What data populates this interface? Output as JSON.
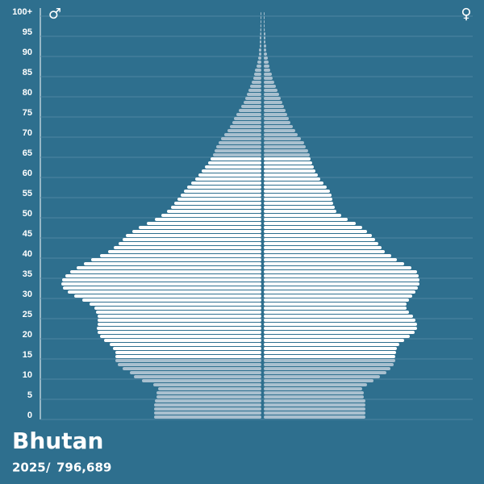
{
  "chart_data": {
    "type": "pyramid",
    "title": "Bhutan",
    "year": "2025",
    "separator": "/",
    "total": "796,689",
    "categories": [
      "0",
      null,
      null,
      null,
      null,
      "5",
      null,
      null,
      null,
      null,
      "10",
      null,
      null,
      null,
      null,
      "15",
      null,
      null,
      null,
      null,
      "20",
      null,
      null,
      null,
      null,
      "25",
      null,
      null,
      null,
      null,
      "30",
      null,
      null,
      null,
      null,
      "35",
      null,
      null,
      null,
      null,
      "40",
      null,
      null,
      null,
      null,
      "45",
      null,
      null,
      null,
      null,
      "50",
      null,
      null,
      null,
      null,
      "55",
      null,
      null,
      null,
      null,
      "60",
      null,
      null,
      null,
      null,
      "65",
      null,
      null,
      null,
      null,
      "70",
      null,
      null,
      null,
      null,
      "75",
      null,
      null,
      null,
      null,
      "80",
      null,
      null,
      null,
      null,
      "85",
      null,
      null,
      null,
      null,
      "90",
      null,
      null,
      null,
      null,
      "95",
      null,
      null,
      null,
      null,
      "100+"
    ],
    "series": [
      {
        "name": "♂",
        "side": "left",
        "color": "#ffffff",
        "values": [
          5054,
          5054,
          5054,
          5054,
          5016,
          4940,
          4940,
          4864,
          5092,
          5624,
          6004,
          6194,
          6536,
          6764,
          6878,
          6878,
          6878,
          6992,
          7144,
          7410,
          7600,
          7714,
          7752,
          7714,
          7714,
          7714,
          7790,
          7866,
          8094,
          8436,
          8816,
          9120,
          9348,
          9424,
          9386,
          9234,
          9006,
          8702,
          8360,
          8018,
          7600,
          7220,
          6954,
          6726,
          6536,
          6384,
          6080,
          5776,
          5396,
          5016,
          4712,
          4446,
          4256,
          4104,
          3952,
          3800,
          3648,
          3496,
          3306,
          3116,
          2964,
          2812,
          2660,
          2508,
          2394,
          2280,
          2204,
          2128,
          2014,
          1900,
          1748,
          1596,
          1482,
          1368,
          1292,
          1178,
          1064,
          950,
          836,
          760,
          684,
          608,
          532,
          456,
          380,
          342,
          304,
          228,
          190,
          152,
          114,
          114,
          76,
          76,
          76,
          57,
          50,
          45,
          40,
          38,
          38
        ]
      },
      {
        "name": "♀",
        "side": "right",
        "color": "#ffffff",
        "values": [
          4788,
          4788,
          4788,
          4788,
          4788,
          4712,
          4712,
          4636,
          4864,
          5168,
          5472,
          5776,
          5966,
          6118,
          6194,
          6194,
          6232,
          6270,
          6384,
          6612,
          6878,
          7106,
          7220,
          7220,
          7144,
          7030,
          6840,
          6726,
          6726,
          6840,
          6992,
          7144,
          7258,
          7334,
          7334,
          7296,
          7220,
          6954,
          6612,
          6270,
          6004,
          5700,
          5548,
          5396,
          5244,
          5092,
          4864,
          4636,
          4332,
          3952,
          3648,
          3420,
          3344,
          3268,
          3230,
          3192,
          3116,
          2964,
          2812,
          2660,
          2546,
          2432,
          2356,
          2280,
          2204,
          2166,
          2090,
          1976,
          1900,
          1748,
          1596,
          1482,
          1368,
          1254,
          1178,
          1102,
          1026,
          950,
          874,
          798,
          722,
          646,
          570,
          494,
          418,
          380,
          304,
          266,
          228,
          190,
          152,
          114,
          114,
          76,
          76,
          76,
          45,
          40,
          38,
          38,
          38
        ]
      }
    ],
    "working_age": [
      15,
      64
    ],
    "dependent_color": "#a9c0cf",
    "xlim": [
      0,
      10450
    ],
    "grid": true
  }
}
